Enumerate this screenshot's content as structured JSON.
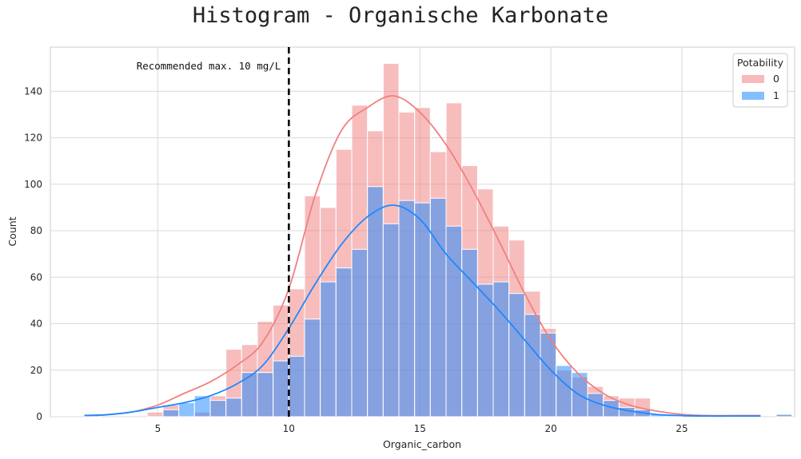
{
  "chart_data": {
    "type": "histogram",
    "title": "Histogram - Organische Karbonate",
    "xlabel": "Organic_carbon",
    "ylabel": "Count",
    "xlim": [
      0.9,
      29.3
    ],
    "ylim": [
      0,
      159
    ],
    "xticks": [
      5,
      10,
      15,
      20,
      25
    ],
    "yticks": [
      0,
      20,
      40,
      60,
      80,
      100,
      120,
      140
    ],
    "grid": true,
    "bin_start": 2.2,
    "bin_width": 0.6,
    "reference_line": {
      "x": 10,
      "style": "dashed",
      "color": "#000000",
      "label": "Recommended max. 10 mg/L"
    },
    "legend": {
      "title": "Potability",
      "position": "top-right"
    },
    "series": [
      {
        "name": "0",
        "color": "#f08080",
        "counts": [
          1,
          0,
          0,
          0,
          2,
          5,
          0,
          2,
          9,
          29,
          31,
          41,
          48,
          55,
          95,
          90,
          115,
          134,
          123,
          152,
          131,
          133,
          114,
          135,
          108,
          98,
          82,
          76,
          54,
          38,
          20,
          17,
          13,
          9,
          8,
          8,
          0,
          0,
          0,
          0,
          0,
          0,
          0,
          0,
          1
        ],
        "kde": [
          [
            2.2,
            0.6
          ],
          [
            3,
            0.8
          ],
          [
            4,
            2
          ],
          [
            5,
            5
          ],
          [
            6,
            10
          ],
          [
            7,
            15
          ],
          [
            8,
            22
          ],
          [
            9,
            32
          ],
          [
            10,
            55
          ],
          [
            11,
            95
          ],
          [
            12,
            123
          ],
          [
            13,
            133
          ],
          [
            14,
            138
          ],
          [
            15,
            131
          ],
          [
            16,
            117
          ],
          [
            17,
            98
          ],
          [
            18,
            76
          ],
          [
            19,
            53
          ],
          [
            20,
            33
          ],
          [
            21,
            19
          ],
          [
            22,
            10
          ],
          [
            23,
            5
          ],
          [
            24,
            2.5
          ],
          [
            25,
            1
          ],
          [
            26,
            0.5
          ],
          [
            27,
            0.5
          ],
          [
            28,
            0.5
          ]
        ]
      },
      {
        "name": "1",
        "color": "#1e88ff",
        "counts": [
          1,
          0,
          0,
          0,
          0,
          3,
          6,
          9,
          7,
          8,
          19,
          19,
          24,
          26,
          42,
          58,
          64,
          72,
          99,
          83,
          93,
          92,
          94,
          82,
          72,
          57,
          58,
          53,
          44,
          36,
          22,
          19,
          10,
          7,
          4,
          3,
          1,
          1,
          0,
          0,
          0,
          0,
          0,
          0,
          1
        ],
        "kde": [
          [
            2.2,
            0.5
          ],
          [
            3,
            0.8
          ],
          [
            4,
            2
          ],
          [
            5,
            4
          ],
          [
            6,
            6
          ],
          [
            7,
            9
          ],
          [
            8,
            14
          ],
          [
            9,
            22
          ],
          [
            10,
            38
          ],
          [
            11,
            57
          ],
          [
            12,
            74
          ],
          [
            13,
            86
          ],
          [
            14,
            91
          ],
          [
            15,
            85
          ],
          [
            16,
            70
          ],
          [
            17,
            58
          ],
          [
            18,
            46
          ],
          [
            19,
            33
          ],
          [
            20,
            20
          ],
          [
            21,
            10
          ],
          [
            22,
            5
          ],
          [
            23,
            2.5
          ],
          [
            24,
            1
          ],
          [
            25,
            0.5
          ],
          [
            26,
            0.3
          ],
          [
            27,
            0.3
          ],
          [
            28,
            0.3
          ]
        ]
      }
    ]
  }
}
